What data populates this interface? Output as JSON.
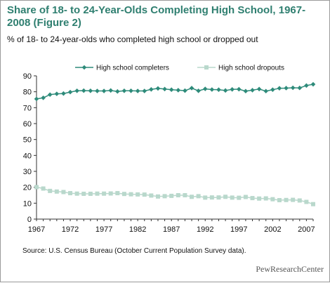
{
  "header": {
    "title": "Share of 18- to 24-Year-Olds Completing High School, 1967-2008 (Figure 2)",
    "subtitle": "% of 18- to 24-year-olds who completed high school or dropped out"
  },
  "footer": {
    "source": "Source: U.S. Census Bureau (October Current Population Survey data).",
    "brand": "PewResearchCenter"
  },
  "chart_data": {
    "type": "line",
    "x": [
      1967,
      1968,
      1969,
      1970,
      1971,
      1972,
      1973,
      1974,
      1975,
      1976,
      1977,
      1978,
      1979,
      1980,
      1981,
      1982,
      1983,
      1984,
      1985,
      1986,
      1987,
      1988,
      1989,
      1990,
      1991,
      1992,
      1993,
      1994,
      1995,
      1996,
      1997,
      1998,
      1999,
      2000,
      2001,
      2002,
      2003,
      2004,
      2005,
      2006,
      2007,
      2008
    ],
    "xticks": [
      1967,
      1972,
      1977,
      1982,
      1987,
      1992,
      1997,
      2002,
      2007
    ],
    "ylim": [
      0,
      90
    ],
    "yticks": [
      0,
      10,
      20,
      30,
      40,
      50,
      60,
      70,
      80,
      90
    ],
    "grid": false,
    "legend_position": "top",
    "series": [
      {
        "name": "High school completers",
        "color": "#2e8b7a",
        "marker": "diamond",
        "values": [
          75.5,
          76.2,
          78.2,
          78.7,
          78.9,
          79.8,
          80.6,
          80.7,
          80.6,
          80.5,
          80.5,
          80.8,
          80.2,
          80.6,
          80.6,
          80.5,
          80.5,
          81.5,
          82.1,
          81.7,
          81.3,
          81.0,
          80.7,
          82.3,
          80.6,
          81.8,
          81.4,
          81.3,
          80.8,
          81.5,
          81.6,
          80.4,
          81.0,
          81.7,
          80.4,
          81.3,
          82.2,
          82.3,
          82.5,
          82.4,
          83.9,
          84.7
        ]
      },
      {
        "name": "High school dropouts",
        "color": "#b9d8cc",
        "marker": "square",
        "values": [
          20.1,
          19.2,
          17.7,
          17.3,
          17.0,
          16.3,
          16.0,
          15.9,
          15.9,
          16.0,
          16.0,
          16.1,
          16.3,
          15.8,
          15.6,
          15.5,
          15.4,
          14.8,
          14.2,
          14.4,
          14.6,
          15.0,
          15.0,
          14.0,
          14.4,
          13.5,
          13.6,
          13.6,
          14.0,
          13.5,
          13.4,
          13.9,
          13.2,
          12.9,
          13.0,
          12.5,
          11.9,
          12.0,
          12.1,
          11.7,
          10.8,
          9.4
        ]
      }
    ]
  }
}
